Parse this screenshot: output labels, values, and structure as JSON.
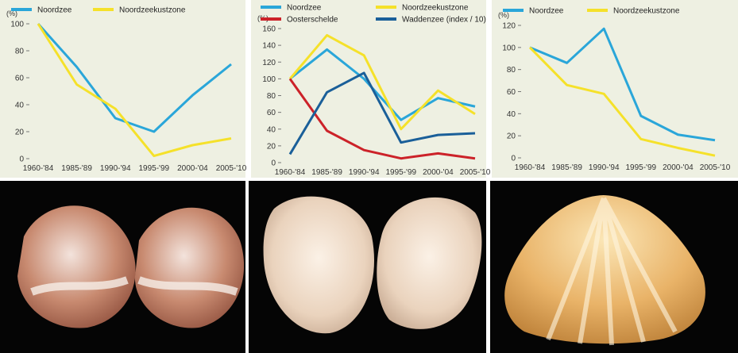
{
  "chart_data": [
    {
      "type": "line",
      "ylabel": "(%)",
      "ylim": [
        0,
        100
      ],
      "yticks": [
        0,
        20,
        40,
        60,
        80,
        100
      ],
      "categories": [
        "1960-'84",
        "1985-'89",
        "1990-'94",
        "1995-'99",
        "2000-'04",
        "2005-'10"
      ],
      "grid": false,
      "legend_position": "top",
      "series": [
        {
          "name": "Noordzee",
          "color": "#2aa6d9",
          "values": [
            100,
            68,
            30,
            20,
            47,
            70
          ]
        },
        {
          "name": "Noordzeekustzone",
          "color": "#f5e12a",
          "values": [
            100,
            55,
            37,
            2,
            10,
            15
          ]
        }
      ]
    },
    {
      "type": "line",
      "ylabel": "(%)",
      "ylim": [
        0,
        160
      ],
      "yticks": [
        0,
        20,
        40,
        60,
        80,
        100,
        120,
        140,
        160
      ],
      "categories": [
        "1960-'84",
        "1985-'89",
        "1990-'94",
        "1995-'99",
        "2000-'04",
        "2005-'10"
      ],
      "grid": false,
      "legend_position": "top",
      "series": [
        {
          "name": "Noordzee",
          "color": "#2aa6d9",
          "values": [
            100,
            135,
            100,
            51,
            77,
            67
          ]
        },
        {
          "name": "Noordzeekustzone",
          "color": "#f5e12a",
          "values": [
            100,
            152,
            128,
            40,
            86,
            58
          ]
        },
        {
          "name": "Oosterschelde",
          "color": "#cc2229",
          "values": [
            100,
            38,
            15,
            5,
            11,
            5
          ]
        },
        {
          "name": "Waddenzee (index / 10)",
          "color": "#1a5f99",
          "values": [
            10,
            84,
            107,
            24,
            33,
            35
          ]
        }
      ]
    },
    {
      "type": "line",
      "ylabel": "(%)",
      "ylim": [
        0,
        120
      ],
      "yticks": [
        0,
        20,
        40,
        60,
        80,
        100,
        120
      ],
      "categories": [
        "1960-'84",
        "1985-'89",
        "1990-'94",
        "1995-'99",
        "2000-'04",
        "2005-'10"
      ],
      "grid": false,
      "legend_position": "top",
      "series": [
        {
          "name": "Noordzee",
          "color": "#2aa6d9",
          "values": [
            100,
            86,
            117,
            38,
            21,
            16
          ]
        },
        {
          "name": "Noordzeekustzone",
          "color": "#f5e12a",
          "values": [
            100,
            66,
            58,
            17,
            9,
            2
          ]
        }
      ]
    }
  ],
  "photos": [
    {
      "icon": "shell-photo",
      "description_icon": "pair-of-brown-striped-clam-shells"
    },
    {
      "icon": "shell-photo",
      "description_icon": "pair-of-pale-cream-clam-shells"
    },
    {
      "icon": "shell-photo",
      "description_icon": "single-orange-rayed-clam-shell"
    }
  ]
}
